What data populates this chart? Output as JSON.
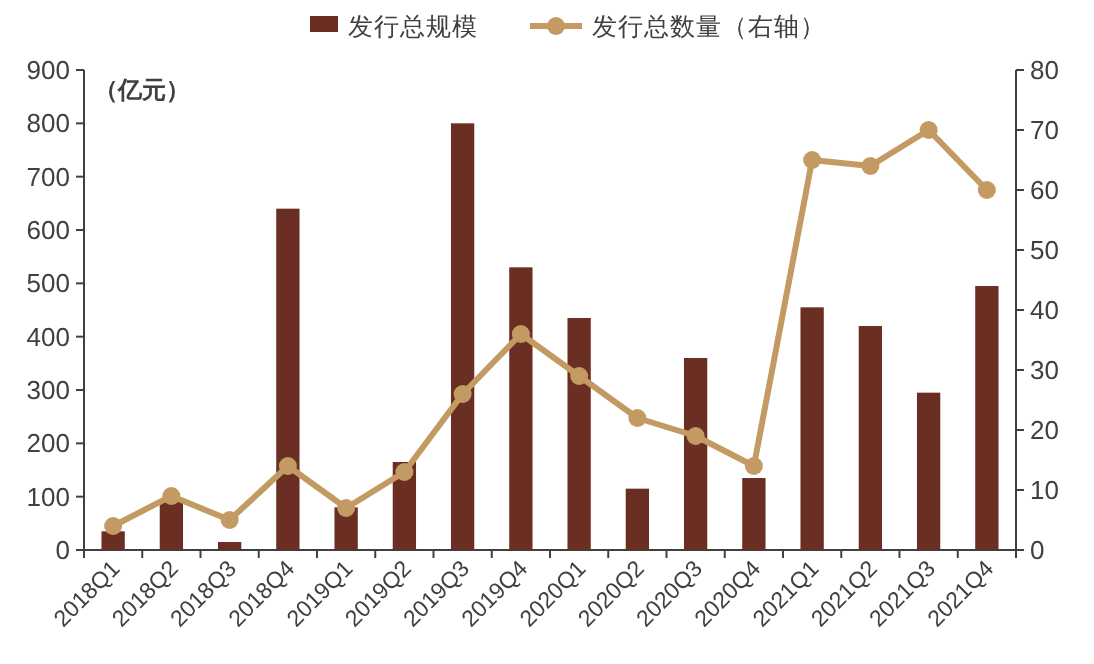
{
  "chart_data": {
    "type": "bar",
    "categories": [
      "2018Q1",
      "2018Q2",
      "2018Q3",
      "2018Q4",
      "2019Q1",
      "2019Q2",
      "2019Q3",
      "2019Q4",
      "2020Q1",
      "2020Q2",
      "2020Q3",
      "2020Q4",
      "2021Q1",
      "2021Q2",
      "2021Q3",
      "2021Q4"
    ],
    "series": [
      {
        "name": "发行总规模",
        "color": "#6b2e22",
        "values": [
          35,
          90,
          15,
          640,
          80,
          165,
          800,
          530,
          435,
          115,
          360,
          135,
          455,
          420,
          295,
          495
        ]
      },
      {
        "name": "发行总数量（右轴）",
        "type": "line",
        "axis": "y2",
        "color": "#c49a63",
        "marker": "circle",
        "values": [
          4,
          9,
          5,
          14,
          7,
          13,
          26,
          36,
          29,
          22,
          19,
          14,
          65,
          64,
          70,
          60
        ]
      }
    ],
    "ylim": [
      0,
      900
    ],
    "yticks": [
      0,
      100,
      200,
      300,
      400,
      500,
      600,
      700,
      800,
      900
    ],
    "y2lim": [
      0,
      80
    ],
    "y2ticks": [
      0,
      10,
      20,
      30,
      40,
      50,
      60,
      70,
      80
    ],
    "annotations": [
      "（亿元）"
    ],
    "legend": "top",
    "grid": false
  }
}
